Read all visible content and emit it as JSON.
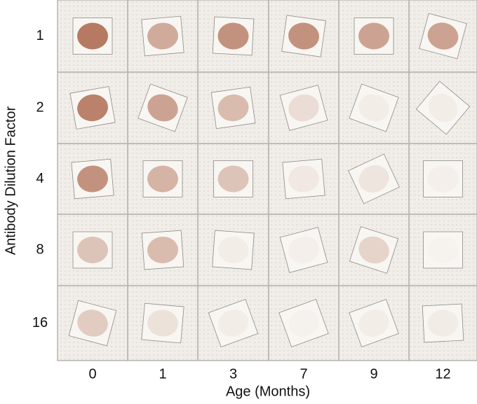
{
  "figure": {
    "y_label": "Antibody Dilution Factor",
    "rows": [
      "1",
      "2",
      "4",
      "8",
      "16"
    ],
    "x_label": "Age (Months)",
    "columns": [
      "0",
      "1",
      "3",
      "7",
      "9",
      "12"
    ]
  }
}
